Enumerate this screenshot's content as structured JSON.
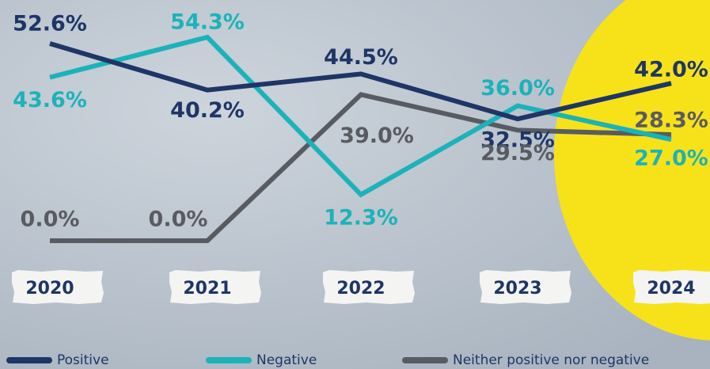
{
  "chart_data": {
    "type": "line",
    "categories": [
      "2020",
      "2021",
      "2022",
      "2023",
      "2024"
    ],
    "series": [
      {
        "name": "Positive",
        "color": "#1f3566",
        "values": [
          52.6,
          40.2,
          44.5,
          32.5,
          42.0
        ],
        "value_labels": [
          "52.6%",
          "40.2%",
          "44.5%",
          "32.5%",
          "42.0%"
        ]
      },
      {
        "name": "Negative",
        "color": "#1bb3b9",
        "values": [
          43.6,
          54.3,
          12.3,
          36.0,
          27.0
        ],
        "value_labels": [
          "43.6%",
          "54.3%",
          "12.3%",
          "36.0%",
          "27.0%"
        ]
      },
      {
        "name": "Neither positive nor negative",
        "color": "#595b62",
        "values": [
          0.0,
          0.0,
          39.0,
          29.5,
          28.3
        ],
        "value_labels": [
          "0.0%",
          "0.0%",
          "39.0%",
          "29.5%",
          "28.3%"
        ]
      }
    ]
  }
}
